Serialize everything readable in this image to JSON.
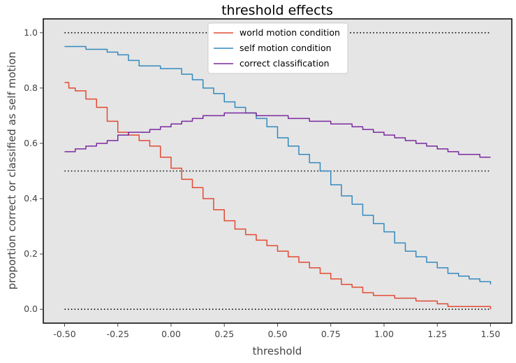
{
  "chart_data": {
    "type": "line",
    "title": "threshold effects",
    "xlabel": "threshold",
    "ylabel": "proportion correct or classified as self motion",
    "xlim": [
      -0.6,
      1.6
    ],
    "ylim": [
      -0.05,
      1.05
    ],
    "x_ticks": [
      -0.5,
      -0.25,
      0.0,
      0.25,
      0.5,
      0.75,
      1.0,
      1.25,
      1.5
    ],
    "x_tick_labels": [
      "-0.50",
      "-0.25",
      "0.00",
      "0.25",
      "0.50",
      "0.75",
      "1.00",
      "1.25",
      "1.50"
    ],
    "y_ticks": [
      0.0,
      0.2,
      0.4,
      0.6,
      0.8,
      1.0
    ],
    "y_tick_labels": [
      "0.0",
      "0.2",
      "0.4",
      "0.6",
      "0.8",
      "1.0"
    ],
    "grid": false,
    "legend_position": "top-center",
    "background_color": "#e5e5e5",
    "series": [
      {
        "name": "world motion condition",
        "color": "#e24a33",
        "style": "step",
        "x": [
          -0.5,
          -0.48,
          -0.45,
          -0.4,
          -0.35,
          -0.3,
          -0.25,
          -0.2,
          -0.15,
          -0.1,
          -0.05,
          0.0,
          0.05,
          0.1,
          0.15,
          0.2,
          0.25,
          0.3,
          0.35,
          0.4,
          0.45,
          0.5,
          0.55,
          0.6,
          0.65,
          0.7,
          0.75,
          0.8,
          0.85,
          0.9,
          0.95,
          1.0,
          1.05,
          1.1,
          1.15,
          1.2,
          1.25,
          1.3,
          1.35,
          1.4,
          1.45,
          1.5
        ],
        "y": [
          0.82,
          0.8,
          0.79,
          0.76,
          0.73,
          0.68,
          0.64,
          0.63,
          0.61,
          0.59,
          0.55,
          0.51,
          0.47,
          0.44,
          0.4,
          0.36,
          0.32,
          0.29,
          0.27,
          0.25,
          0.23,
          0.21,
          0.19,
          0.17,
          0.15,
          0.13,
          0.11,
          0.09,
          0.08,
          0.06,
          0.05,
          0.05,
          0.04,
          0.04,
          0.03,
          0.03,
          0.02,
          0.01,
          0.01,
          0.01,
          0.01,
          0.0
        ]
      },
      {
        "name": "self motion condition",
        "color": "#348abd",
        "style": "step",
        "x": [
          -0.5,
          -0.45,
          -0.4,
          -0.35,
          -0.3,
          -0.25,
          -0.2,
          -0.15,
          -0.1,
          -0.05,
          0.0,
          0.05,
          0.1,
          0.15,
          0.2,
          0.25,
          0.3,
          0.35,
          0.4,
          0.45,
          0.5,
          0.55,
          0.6,
          0.65,
          0.7,
          0.75,
          0.8,
          0.85,
          0.9,
          0.95,
          1.0,
          1.05,
          1.1,
          1.15,
          1.2,
          1.25,
          1.3,
          1.35,
          1.4,
          1.45,
          1.5
        ],
        "y": [
          0.95,
          0.95,
          0.94,
          0.94,
          0.93,
          0.92,
          0.9,
          0.88,
          0.88,
          0.87,
          0.87,
          0.85,
          0.83,
          0.8,
          0.78,
          0.75,
          0.73,
          0.71,
          0.69,
          0.66,
          0.62,
          0.59,
          0.56,
          0.53,
          0.5,
          0.45,
          0.41,
          0.38,
          0.34,
          0.31,
          0.28,
          0.24,
          0.21,
          0.19,
          0.17,
          0.15,
          0.13,
          0.12,
          0.11,
          0.1,
          0.09
        ]
      },
      {
        "name": "correct classification",
        "color": "#7a2a9f",
        "style": "step",
        "x": [
          -0.5,
          -0.45,
          -0.4,
          -0.35,
          -0.3,
          -0.25,
          -0.2,
          -0.15,
          -0.1,
          -0.05,
          0.0,
          0.05,
          0.1,
          0.15,
          0.2,
          0.25,
          0.3,
          0.35,
          0.4,
          0.45,
          0.5,
          0.55,
          0.6,
          0.65,
          0.7,
          0.75,
          0.8,
          0.85,
          0.9,
          0.95,
          1.0,
          1.05,
          1.1,
          1.15,
          1.2,
          1.25,
          1.3,
          1.35,
          1.4,
          1.45,
          1.5
        ],
        "y": [
          0.57,
          0.58,
          0.59,
          0.6,
          0.61,
          0.63,
          0.64,
          0.64,
          0.65,
          0.66,
          0.67,
          0.68,
          0.69,
          0.7,
          0.7,
          0.71,
          0.71,
          0.71,
          0.7,
          0.7,
          0.7,
          0.69,
          0.69,
          0.68,
          0.68,
          0.67,
          0.67,
          0.66,
          0.65,
          0.64,
          0.63,
          0.62,
          0.61,
          0.6,
          0.59,
          0.58,
          0.57,
          0.56,
          0.56,
          0.55,
          0.55
        ]
      }
    ],
    "reference_lines": [
      {
        "y": 1.0,
        "style": "dotted",
        "color": "#000000"
      },
      {
        "y": 0.5,
        "style": "dotted",
        "color": "#000000"
      },
      {
        "y": 0.0,
        "style": "dotted",
        "color": "#000000"
      }
    ]
  }
}
